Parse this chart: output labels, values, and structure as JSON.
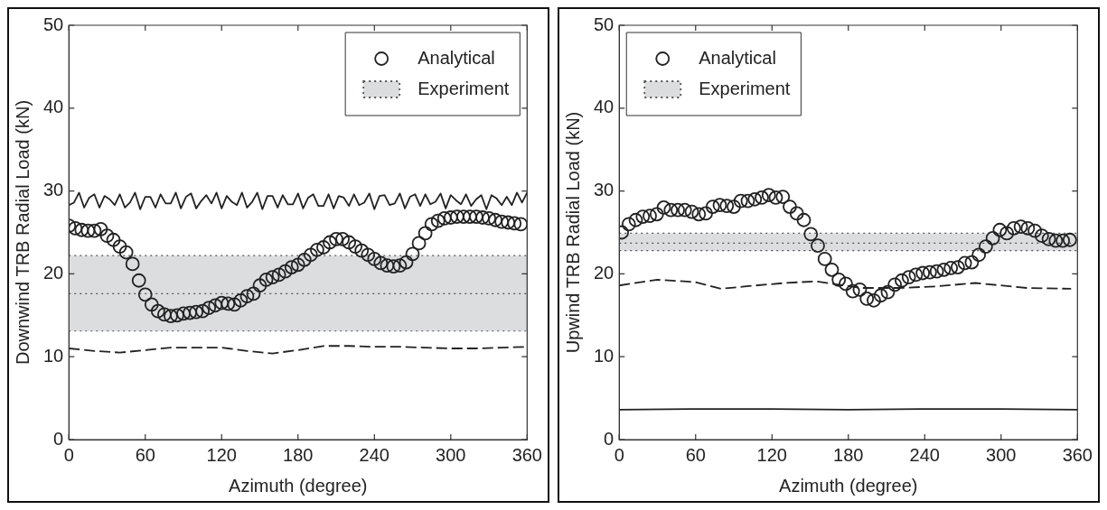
{
  "chart_data": [
    {
      "type": "line",
      "xlabel": "Azimuth (degree)",
      "ylabel": "Downwind TRB Radial Load (kN)",
      "xlim": [
        0,
        360
      ],
      "xticks": [
        0,
        60,
        120,
        180,
        240,
        300,
        360
      ],
      "ylim": [
        0,
        50
      ],
      "yticks": [
        0,
        10,
        20,
        30,
        40,
        50
      ],
      "grid": false,
      "legend": "top right",
      "series": [
        {
          "type": "line",
          "color": "#222222",
          "line_style": "solid",
          "marker": "none",
          "x": [
            0,
            4,
            8,
            12,
            16,
            20,
            24,
            28,
            32,
            36,
            40,
            44,
            48,
            52,
            56,
            60,
            64,
            68,
            72,
            76,
            80,
            84,
            88,
            92,
            96,
            100,
            104,
            108,
            112,
            116,
            120,
            124,
            128,
            132,
            136,
            140,
            144,
            148,
            152,
            156,
            160,
            164,
            168,
            172,
            176,
            180,
            184,
            188,
            192,
            196,
            200,
            204,
            208,
            212,
            216,
            220,
            224,
            228,
            232,
            236,
            240,
            244,
            248,
            252,
            256,
            260,
            264,
            268,
            272,
            276,
            280,
            284,
            288,
            292,
            296,
            300,
            304,
            308,
            312,
            316,
            320,
            324,
            328,
            332,
            336,
            340,
            344,
            348,
            352,
            356,
            360
          ],
          "values": [
            28.3,
            28.6,
            29.8,
            28.0,
            29.2,
            29.6,
            28.0,
            29.4,
            29.0,
            28.3,
            29.6,
            28.0,
            28.6,
            29.8,
            27.8,
            29.3,
            29.3,
            28.0,
            29.6,
            28.5,
            28.5,
            29.8,
            27.9,
            29.3,
            29.7,
            27.9,
            28.8,
            29.5,
            28.5,
            29.8,
            27.9,
            29.4,
            28.7,
            28.3,
            29.8,
            28.0,
            28.7,
            29.8,
            27.8,
            29.4,
            29.4,
            28.0,
            29.5,
            28.4,
            28.4,
            29.7,
            27.9,
            29.2,
            29.6,
            28.2,
            28.2,
            29.6,
            27.9,
            29.4,
            29.2,
            28.2,
            29.6,
            28.3,
            28.6,
            29.7,
            27.8,
            29.4,
            29.5,
            28.3,
            28.5,
            29.7,
            27.9,
            29.3,
            29.6,
            28.2,
            29.6,
            28.4,
            28.7,
            29.7,
            27.9,
            29.5,
            28.9,
            28.4,
            29.6,
            28.2,
            29.0,
            29.5,
            27.8,
            29.5,
            29.1,
            28.3,
            29.3,
            28.3,
            29.8,
            28.6,
            29.8
          ]
        },
        {
          "name": "Analytical",
          "type": "scatter",
          "color": "#222222",
          "marker": "circle",
          "x": [
            0,
            5,
            10,
            15,
            20,
            25,
            30,
            35,
            40,
            45,
            50,
            55,
            60,
            65,
            70,
            75,
            80,
            85,
            90,
            95,
            100,
            105,
            110,
            115,
            120,
            125,
            130,
            135,
            140,
            145,
            150,
            155,
            160,
            165,
            170,
            175,
            180,
            185,
            190,
            195,
            200,
            205,
            210,
            215,
            220,
            225,
            230,
            235,
            240,
            245,
            250,
            255,
            260,
            265,
            270,
            275,
            280,
            285,
            290,
            295,
            300,
            305,
            310,
            315,
            320,
            325,
            330,
            335,
            340,
            345,
            350,
            355
          ],
          "values": [
            25.8,
            25.5,
            25.3,
            25.2,
            25.2,
            25.4,
            24.6,
            24.1,
            23.3,
            22.6,
            21.2,
            19.2,
            17.5,
            16.3,
            15.5,
            15.1,
            14.9,
            15.0,
            15.2,
            15.3,
            15.4,
            15.5,
            15.9,
            16.2,
            16.5,
            16.4,
            16.3,
            16.8,
            17.3,
            17.6,
            18.6,
            19.3,
            19.6,
            19.9,
            20.3,
            20.8,
            21.1,
            21.7,
            22.3,
            22.9,
            23.2,
            23.8,
            24.2,
            24.2,
            23.8,
            23.3,
            22.8,
            22.3,
            21.8,
            21.3,
            21.0,
            20.9,
            21.0,
            21.4,
            22.4,
            23.7,
            24.9,
            26.0,
            26.4,
            26.7,
            26.8,
            26.9,
            26.9,
            26.9,
            26.9,
            26.8,
            26.7,
            26.5,
            26.3,
            26.2,
            26.1,
            26.0
          ]
        },
        {
          "type": "line",
          "color": "#222222",
          "line_style": "dashed",
          "marker": "none",
          "x": [
            0,
            20,
            40,
            60,
            80,
            100,
            120,
            140,
            160,
            180,
            200,
            220,
            240,
            260,
            280,
            300,
            320,
            340,
            360
          ],
          "values": [
            11.0,
            10.7,
            10.5,
            10.8,
            11.1,
            11.1,
            11.1,
            10.7,
            10.4,
            10.8,
            11.3,
            11.3,
            11.2,
            11.2,
            11.1,
            11.0,
            11.0,
            11.1,
            11.2
          ]
        }
      ],
      "bands": [
        {
          "axis": "y",
          "from": 13.1,
          "to": 22.2,
          "label": "Experiment",
          "color": "#dcdddf"
        }
      ],
      "ref_lines": [
        {
          "axis": "y",
          "value": 13.1,
          "color": "#555555",
          "line_style": "dotted"
        },
        {
          "axis": "y",
          "value": 17.6,
          "color": "#555555",
          "line_style": "dotted"
        },
        {
          "axis": "y",
          "value": 22.2,
          "color": "#555555",
          "line_style": "dotted"
        }
      ]
    },
    {
      "type": "line",
      "xlabel": "Azimuth (degree)",
      "ylabel": "Upwind TRB Radial Load (kN)",
      "xlim": [
        0,
        360
      ],
      "xticks": [
        0,
        60,
        120,
        180,
        240,
        300,
        360
      ],
      "ylim": [
        0,
        50
      ],
      "yticks": [
        0,
        10,
        20,
        30,
        40,
        50
      ],
      "grid": false,
      "legend": "top left",
      "series": [
        {
          "type": "line",
          "color": "#222222",
          "line_style": "solid",
          "marker": "none",
          "x": [
            0,
            60,
            120,
            180,
            240,
            300,
            360
          ],
          "values": [
            3.6,
            3.7,
            3.7,
            3.6,
            3.7,
            3.7,
            3.6
          ]
        },
        {
          "name": "Analytical",
          "type": "scatter",
          "color": "#222222",
          "marker": "circle",
          "x": [
            2,
            7.5,
            13,
            18.5,
            24,
            29.5,
            35,
            40.5,
            46,
            51.5,
            57,
            62.5,
            68,
            73.5,
            79,
            84.5,
            90,
            95.5,
            101,
            106.5,
            112,
            117.5,
            123,
            128.5,
            134,
            139.5,
            145,
            150.5,
            156,
            161.5,
            167,
            172.5,
            178,
            183.5,
            189,
            194.5,
            200,
            205.5,
            211,
            216.5,
            222,
            227.5,
            233,
            238.5,
            244,
            249.5,
            255,
            260.5,
            266,
            271.5,
            277,
            282.5,
            288,
            293.5,
            299,
            304.5,
            310,
            315.5,
            321,
            326.5,
            332,
            337.5,
            343,
            348.5,
            354
          ],
          "values": [
            25.0,
            26.0,
            26.5,
            26.9,
            27.0,
            27.2,
            28.0,
            27.7,
            27.7,
            27.7,
            27.5,
            27.2,
            27.3,
            28.1,
            28.3,
            28.2,
            28.1,
            28.8,
            28.8,
            29.0,
            29.2,
            29.5,
            29.2,
            29.3,
            28.1,
            27.3,
            26.5,
            24.8,
            23.4,
            21.8,
            20.5,
            19.3,
            18.8,
            17.9,
            18.1,
            17.0,
            16.8,
            17.4,
            17.8,
            18.7,
            19.2,
            19.6,
            19.9,
            20.1,
            20.2,
            20.3,
            20.5,
            20.7,
            20.8,
            21.3,
            21.4,
            22.3,
            23.3,
            24.3,
            25.3,
            24.9,
            25.5,
            25.7,
            25.5,
            25.2,
            24.6,
            24.2,
            24.0,
            24.0,
            24.1
          ]
        },
        {
          "type": "line",
          "color": "#222222",
          "line_style": "dashed",
          "marker": "none",
          "x": [
            0,
            30,
            60,
            80,
            100,
            130,
            155,
            190,
            220,
            250,
            280,
            320,
            355
          ],
          "values": [
            18.6,
            19.3,
            19.0,
            18.2,
            18.5,
            18.9,
            19.1,
            18.3,
            18.3,
            18.5,
            18.9,
            18.3,
            18.2
          ]
        }
      ],
      "bands": [
        {
          "axis": "y",
          "from": 22.8,
          "to": 24.9,
          "label": "Experiment",
          "color": "#dcdddf"
        }
      ],
      "ref_lines": [
        {
          "axis": "y",
          "value": 22.8,
          "color": "#555555",
          "line_style": "dotted"
        },
        {
          "axis": "y",
          "value": 23.7,
          "color": "#555555",
          "line_style": "dotted"
        },
        {
          "axis": "y",
          "value": 24.9,
          "color": "#555555",
          "line_style": "dotted"
        }
      ]
    }
  ]
}
